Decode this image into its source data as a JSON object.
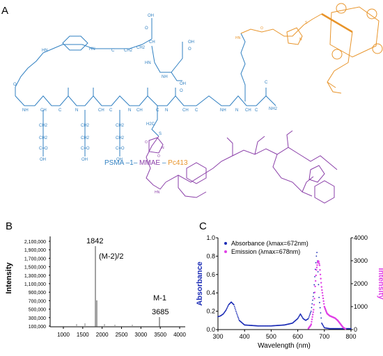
{
  "panels": {
    "a": {
      "letter": "A"
    },
    "b": {
      "letter": "B"
    },
    "c": {
      "letter": "C"
    }
  },
  "structure": {
    "title_parts": [
      {
        "text": "PSMA",
        "color": "#2f7fc1"
      },
      {
        "text": " –1–",
        "color": "#2f7fc1"
      },
      {
        "text": "MMAE",
        "color": "#8a3ea8"
      },
      {
        "text": "–",
        "color": "#2f7fc1"
      },
      {
        "text": "Pc413",
        "color": "#e8942a"
      }
    ],
    "backbone_labels": [
      "O",
      "NH",
      "CH",
      "C",
      "N",
      "CH",
      "C",
      "N",
      "CH",
      "C",
      "N",
      "CH",
      "C",
      "NH",
      "C",
      "N",
      "CH",
      "C",
      "NH2"
    ],
    "side_chain_labels": [
      "CH2",
      "CH2",
      "C=O",
      "OH"
    ],
    "top_chain_labels": [
      "HN",
      "HN",
      "C",
      "CH",
      "CH2",
      "CH2",
      "CH",
      "OH",
      "O",
      "HN",
      "NH",
      "OH",
      "O",
      "OH",
      "O"
    ],
    "linker_labels": [
      "H2C",
      "S",
      "O",
      "N",
      "O",
      "HN"
    ],
    "right_chain_labels": [
      "HN",
      "O",
      "S",
      "N"
    ]
  },
  "mass_spec": {
    "ylabel": "Intensity",
    "yticks": [
      "2,100,000",
      "1,900,000",
      "1,700,000",
      "1,500,000",
      "1,300,000",
      "1,100,000",
      "900,000",
      "700,000",
      "500,000",
      "300,000",
      "100,000"
    ],
    "xticks": [
      "1000",
      "1500",
      "2000",
      "2500",
      "3000",
      "3500",
      "4000"
    ],
    "annotations": [
      "1842",
      "(M-2)/2",
      "M-1",
      "3685"
    ]
  },
  "chart_data": {
    "type": "line",
    "xlabel": "Wavelength (nm)",
    "ylabel": "Absorbance",
    "ylabel_right": "Intensity",
    "xlim": [
      300,
      800
    ],
    "ylim": [
      0,
      1.0
    ],
    "ylim_right": [
      0,
      4000
    ],
    "xticks": [
      "300",
      "400",
      "500",
      "600",
      "700",
      "800"
    ],
    "yticks": [
      "0.0",
      "0.2",
      "0.4",
      "0.6",
      "0.8",
      "1.0"
    ],
    "yticks_right": [
      "0",
      "1000",
      "2000",
      "3000",
      "4000"
    ],
    "legend_position": "top-left",
    "series": [
      {
        "name": "Absorbance (λmax=672nm)",
        "color": "#1a2bb5",
        "axis": "left",
        "x": [
          300,
          310,
          320,
          330,
          340,
          350,
          360,
          370,
          380,
          400,
          450,
          500,
          550,
          580,
          600,
          610,
          620,
          630,
          640,
          650,
          660,
          665,
          670,
          672,
          675,
          680,
          690,
          700,
          720,
          750,
          800
        ],
        "y": [
          0.14,
          0.15,
          0.17,
          0.21,
          0.27,
          0.3,
          0.27,
          0.18,
          0.1,
          0.05,
          0.04,
          0.04,
          0.05,
          0.07,
          0.12,
          0.17,
          0.12,
          0.1,
          0.12,
          0.2,
          0.4,
          0.62,
          0.8,
          0.84,
          0.7,
          0.35,
          0.07,
          0.02,
          0.01,
          0.01,
          0.01
        ]
      },
      {
        "name": "Emission (λmax=678nm)",
        "color": "#e040e6",
        "axis": "right",
        "x": [
          640,
          650,
          660,
          665,
          670,
          675,
          678,
          682,
          685,
          690,
          700,
          710,
          720,
          730,
          740,
          750,
          760,
          770,
          780
        ],
        "y": [
          50,
          200,
          900,
          1800,
          2600,
          2950,
          3000,
          2800,
          2400,
          1800,
          1000,
          700,
          600,
          550,
          500,
          400,
          250,
          100,
          20
        ]
      }
    ]
  }
}
